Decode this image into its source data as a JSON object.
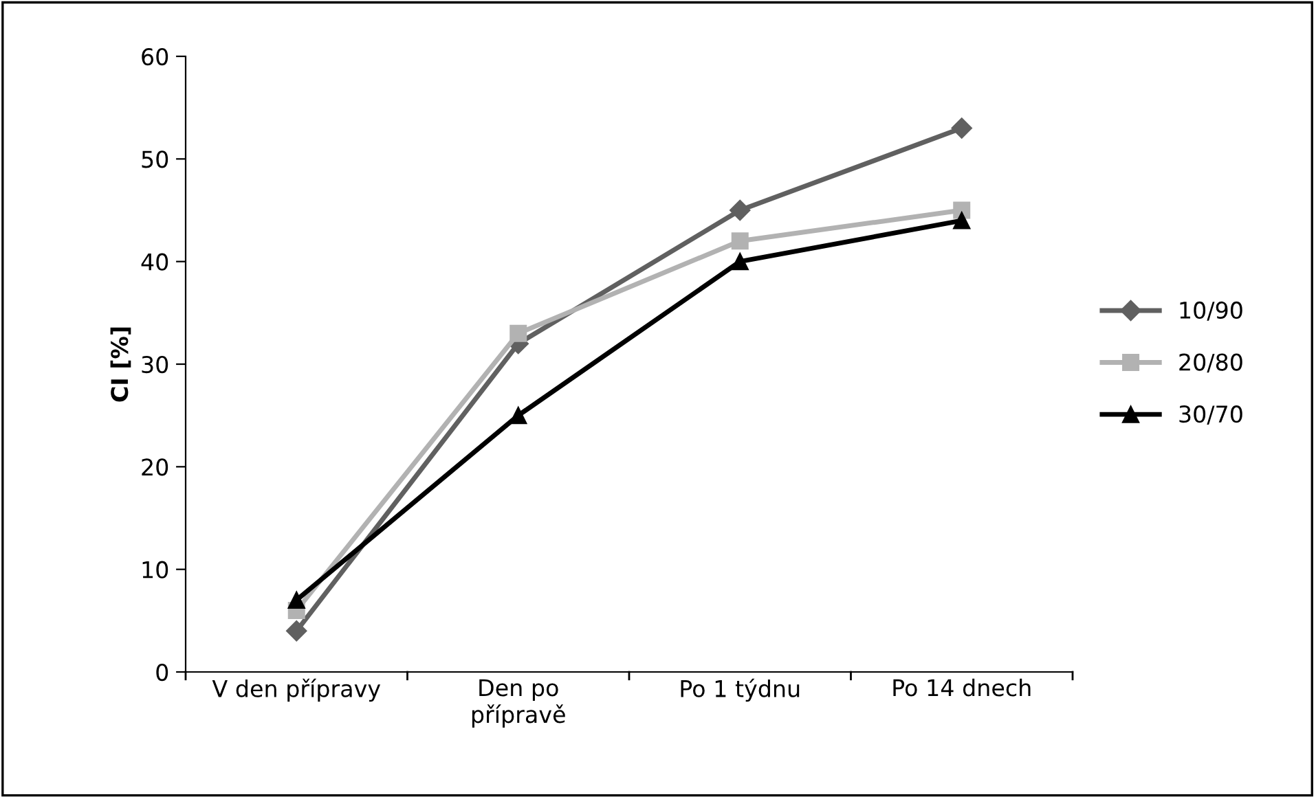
{
  "chart_data": {
    "type": "line",
    "ylabel": "CI [%]",
    "categories": [
      "V den přípravy",
      "Den po\npřípravě",
      "Po 1 týdnu",
      "Po 14 dnech"
    ],
    "series": [
      {
        "name": "10/90",
        "color": "#606060",
        "marker": "diamond",
        "values": [
          4,
          32,
          45,
          53
        ]
      },
      {
        "name": "20/80",
        "color": "#b2b2b2",
        "marker": "square",
        "values": [
          6,
          33,
          42,
          45
        ]
      },
      {
        "name": "30/70",
        "color": "#000000",
        "marker": "triangle",
        "values": [
          7,
          25,
          40,
          44
        ]
      }
    ],
    "ylim": [
      0,
      60
    ],
    "yticks": [
      0,
      10,
      20,
      30,
      40,
      50,
      60
    ],
    "grid": false,
    "legend": "right",
    "line_style": "solid"
  }
}
